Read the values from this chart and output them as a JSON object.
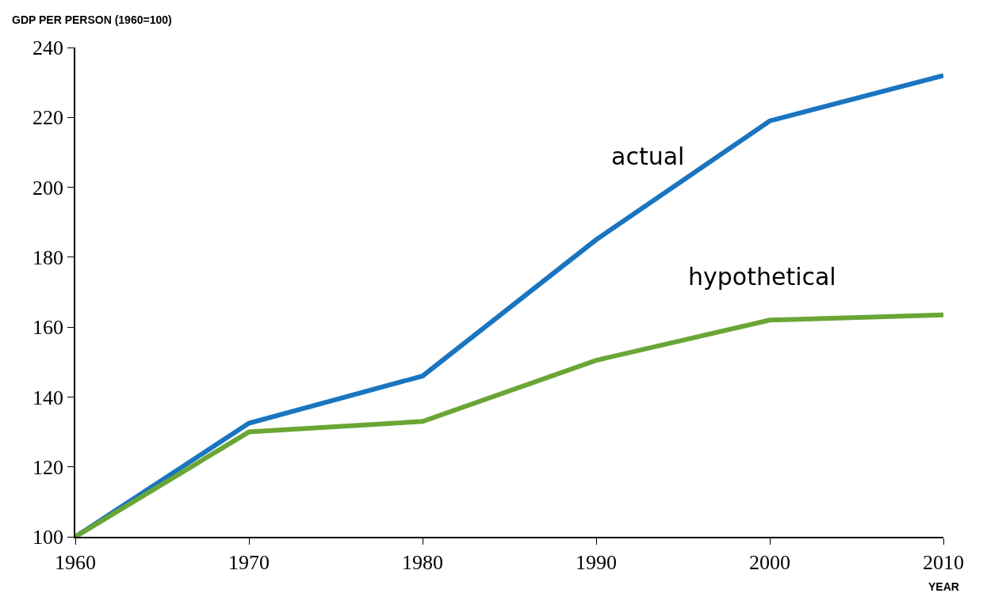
{
  "chart_data": {
    "type": "line",
    "ylabel": "GDP PER PERSON (1960=100)",
    "xlabel": "YEAR",
    "x": [
      1960,
      1970,
      1980,
      1990,
      2000,
      2010
    ],
    "series": [
      {
        "name": "actual",
        "color": "#1a75c0",
        "values": [
          100,
          132.5,
          146,
          185,
          219,
          232
        ]
      },
      {
        "name": "hypothetical",
        "color": "#6aa636",
        "values": [
          100,
          130,
          133,
          150.5,
          162,
          163.5
        ]
      }
    ],
    "xlim": [
      1960,
      2010
    ],
    "ylim": [
      100,
      240
    ],
    "xticks": [
      1960,
      1970,
      1980,
      1990,
      2000,
      2010
    ],
    "yticks": [
      100,
      120,
      140,
      160,
      180,
      200,
      220,
      240
    ],
    "grid": false,
    "legend": false,
    "line_style": "solid",
    "marker": "none"
  }
}
